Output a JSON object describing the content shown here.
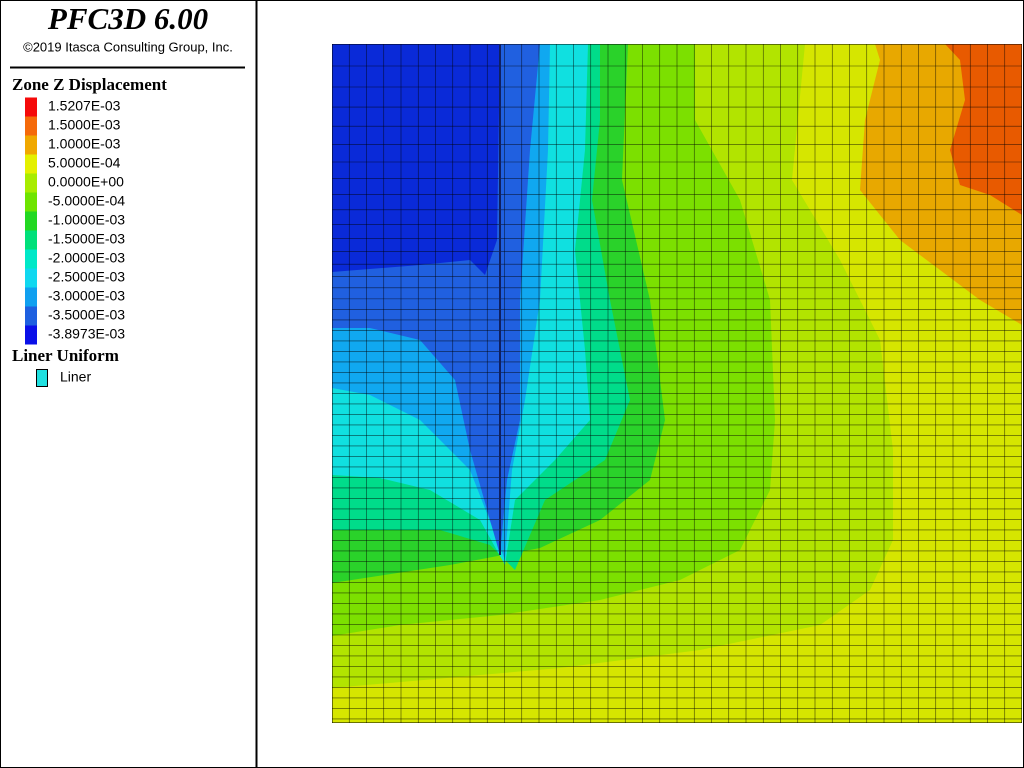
{
  "header": {
    "title": "PFC3D 6.00",
    "copyright": "©2019 Itasca Consulting Group, Inc."
  },
  "legend": {
    "title": "Zone Z Displacement",
    "items": [
      {
        "label": "1.5207E-03",
        "color": "#f50a0a"
      },
      {
        "label": "1.5000E-03",
        "color": "#f56a0a"
      },
      {
        "label": "1.0000E-03",
        "color": "#f0a800"
      },
      {
        "label": "5.0000E-04",
        "color": "#e4f000"
      },
      {
        "label": "0.0000E+00",
        "color": "#a8ec00"
      },
      {
        "label": "-5.0000E-04",
        "color": "#6ee400"
      },
      {
        "label": "-1.0000E-03",
        "color": "#22d822"
      },
      {
        "label": "-1.5000E-03",
        "color": "#00e07a"
      },
      {
        "label": "-2.0000E-03",
        "color": "#00e8c8"
      },
      {
        "label": "-2.5000E-03",
        "color": "#10d8f0"
      },
      {
        "label": "-3.0000E-03",
        "color": "#10a0f0"
      },
      {
        "label": "-3.5000E-03",
        "color": "#1e60e0"
      },
      {
        "label": "-3.8973E-03",
        "color": "#0a10e8"
      }
    ]
  },
  "liner_legend": {
    "title": "Liner Uniform",
    "items": [
      {
        "label": "Liner",
        "color": "#20e0e0"
      }
    ]
  }
}
